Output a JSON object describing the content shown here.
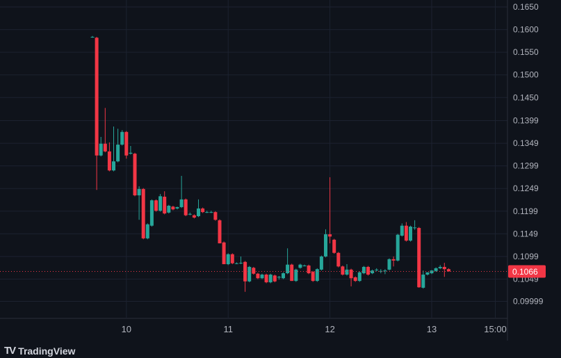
{
  "brand": {
    "logo": "TV",
    "name": "TradingView"
  },
  "colors": {
    "up": "#26a69a",
    "down": "#f23645",
    "background": "#0f131b",
    "grid": "#1c2230",
    "text": "#b2b5be"
  },
  "chart_data": {
    "type": "candlestick",
    "title": "",
    "interval": "1h",
    "y_ticks": [
      "0.1650",
      "0.1600",
      "0.1550",
      "0.1500",
      "0.1450",
      "0.1399",
      "0.1349",
      "0.1299",
      "0.1249",
      "0.1199",
      "0.1149",
      "0.1099",
      "0.1049",
      "0.09999"
    ],
    "ylim": [
      0.0982,
      0.165
    ],
    "x_ticks": [
      {
        "label": "10",
        "index": 8
      },
      {
        "label": "11",
        "index": 32
      },
      {
        "label": "12",
        "index": 56
      },
      {
        "label": "13",
        "index": 80
      },
      {
        "label": "15:00",
        "index": 95
      }
    ],
    "last_price": "0.1066",
    "last_price_value": 0.1066,
    "ohlc": [
      [
        0.1584,
        0.1586,
        0.1582,
        0.1584
      ],
      [
        0.1582,
        0.1584,
        0.1246,
        0.1322
      ],
      [
        0.1322,
        0.1363,
        0.132,
        0.1348
      ],
      [
        0.1348,
        0.1427,
        0.1329,
        0.1331
      ],
      [
        0.1331,
        0.1351,
        0.1287,
        0.1289
      ],
      [
        0.1289,
        0.1386,
        0.1287,
        0.1309
      ],
      [
        0.1309,
        0.1381,
        0.1307,
        0.1346
      ],
      [
        0.1346,
        0.1378,
        0.1344,
        0.1374
      ],
      [
        0.1374,
        0.1376,
        0.1315,
        0.1322
      ],
      [
        0.1326,
        0.1343,
        0.1324,
        0.1328
      ],
      [
        0.1326,
        0.1328,
        0.1232,
        0.1234
      ],
      [
        0.1234,
        0.1254,
        0.118,
        0.1248
      ],
      [
        0.1248,
        0.125,
        0.1137,
        0.1139
      ],
      [
        0.1139,
        0.1172,
        0.1137,
        0.117
      ],
      [
        0.1167,
        0.1225,
        0.1165,
        0.1223
      ],
      [
        0.1223,
        0.1225,
        0.1198,
        0.12
      ],
      [
        0.12,
        0.1237,
        0.1198,
        0.1232
      ],
      [
        0.1231,
        0.1243,
        0.1192,
        0.1194
      ],
      [
        0.1196,
        0.1213,
        0.1194,
        0.1211
      ],
      [
        0.1209,
        0.1211,
        0.1201,
        0.1203
      ],
      [
        0.1205,
        0.1209,
        0.1203,
        0.1208
      ],
      [
        0.1208,
        0.1277,
        0.1206,
        0.1225
      ],
      [
        0.1225,
        0.1227,
        0.1188,
        0.119
      ],
      [
        0.1193,
        0.1196,
        0.119,
        0.1193
      ],
      [
        0.119,
        0.1192,
        0.1183,
        0.1185
      ],
      [
        0.1188,
        0.1225,
        0.1186,
        0.1205
      ],
      [
        0.1205,
        0.1207,
        0.1195,
        0.1197
      ],
      [
        0.1197,
        0.12,
        0.1195,
        0.1197
      ],
      [
        0.1197,
        0.12,
        0.1195,
        0.1197
      ],
      [
        0.1197,
        0.1199,
        0.1178,
        0.118
      ],
      [
        0.1179,
        0.1181,
        0.1128,
        0.1128
      ],
      [
        0.113,
        0.1132,
        0.1082,
        0.1082
      ],
      [
        0.1082,
        0.1106,
        0.108,
        0.1104
      ],
      [
        0.1104,
        0.1106,
        0.1082,
        0.1084
      ],
      [
        0.1084,
        0.1086,
        0.1082,
        0.1084
      ],
      [
        0.1084,
        0.1099,
        0.1082,
        0.1085
      ],
      [
        0.1087,
        0.1089,
        0.1021,
        0.1044
      ],
      [
        0.1044,
        0.1078,
        0.1042,
        0.1076
      ],
      [
        0.1074,
        0.1076,
        0.1059,
        0.1061
      ],
      [
        0.1061,
        0.1063,
        0.1049,
        0.1051
      ],
      [
        0.1051,
        0.1061,
        0.1049,
        0.1059
      ],
      [
        0.1059,
        0.1061,
        0.104,
        0.1042
      ],
      [
        0.1042,
        0.1061,
        0.104,
        0.1059
      ],
      [
        0.1057,
        0.1059,
        0.1042,
        0.1044
      ],
      [
        0.1053,
        0.1056,
        0.1048,
        0.1054
      ],
      [
        0.1051,
        0.1064,
        0.1049,
        0.1062
      ],
      [
        0.1062,
        0.1117,
        0.106,
        0.1081
      ],
      [
        0.1081,
        0.1083,
        0.1045,
        0.1045
      ],
      [
        0.1045,
        0.1072,
        0.1043,
        0.107
      ],
      [
        0.1074,
        0.1083,
        0.1072,
        0.1081
      ],
      [
        0.1079,
        0.1081,
        0.1077,
        0.1079
      ],
      [
        0.1079,
        0.1081,
        0.106,
        0.1062
      ],
      [
        0.1065,
        0.1067,
        0.1043,
        0.1045
      ],
      [
        0.1045,
        0.1073,
        0.1043,
        0.1071
      ],
      [
        0.107,
        0.1101,
        0.1068,
        0.1099
      ],
      [
        0.1099,
        0.1159,
        0.1097,
        0.1148
      ],
      [
        0.1148,
        0.1274,
        0.1128,
        0.1143
      ],
      [
        0.1136,
        0.1138,
        0.1105,
        0.1107
      ],
      [
        0.1107,
        0.1109,
        0.1075,
        0.1077
      ],
      [
        0.1077,
        0.1079,
        0.1057,
        0.1059
      ],
      [
        0.1059,
        0.1082,
        0.1057,
        0.107
      ],
      [
        0.107,
        0.1072,
        0.1033,
        0.1051
      ],
      [
        0.1053,
        0.1055,
        0.1043,
        0.1045
      ],
      [
        0.1045,
        0.1066,
        0.1043,
        0.1064
      ],
      [
        0.1062,
        0.1078,
        0.106,
        0.1076
      ],
      [
        0.1076,
        0.1078,
        0.1057,
        0.1059
      ],
      [
        0.1062,
        0.107,
        0.106,
        0.1068
      ],
      [
        0.107,
        0.1073,
        0.1066,
        0.107
      ],
      [
        0.1067,
        0.1071,
        0.1062,
        0.1067
      ],
      [
        0.1067,
        0.1071,
        0.106,
        0.1068
      ],
      [
        0.107,
        0.1095,
        0.1068,
        0.1093
      ],
      [
        0.1093,
        0.1099,
        0.1077,
        0.109
      ],
      [
        0.109,
        0.1149,
        0.1088,
        0.1147
      ],
      [
        0.1145,
        0.1172,
        0.1143,
        0.1167
      ],
      [
        0.1167,
        0.1175,
        0.1132,
        0.1134
      ],
      [
        0.1134,
        0.1167,
        0.1132,
        0.1165
      ],
      [
        0.1163,
        0.1179,
        0.1158,
        0.1163
      ],
      [
        0.1162,
        0.1164,
        0.103,
        0.1031
      ],
      [
        0.103,
        0.1068,
        0.1028,
        0.1059
      ],
      [
        0.1059,
        0.1064,
        0.1057,
        0.1064
      ],
      [
        0.1062,
        0.1069,
        0.106,
        0.1068
      ],
      [
        0.1067,
        0.1075,
        0.1065,
        0.1073
      ],
      [
        0.1073,
        0.108,
        0.1071,
        0.1076
      ],
      [
        0.1076,
        0.1085,
        0.1054,
        0.1071
      ],
      [
        0.1071,
        0.1073,
        0.1066,
        0.1066
      ]
    ]
  }
}
